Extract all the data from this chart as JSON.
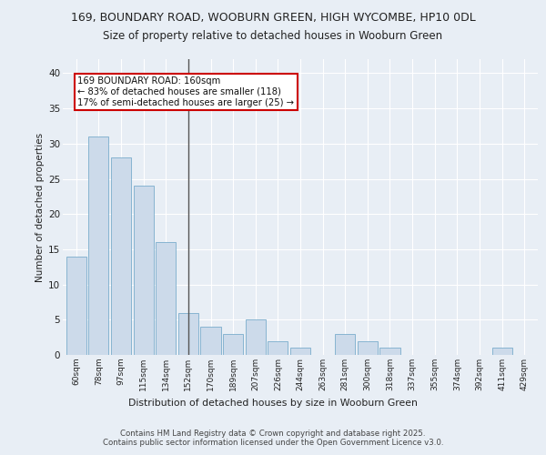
{
  "title1": "169, BOUNDARY ROAD, WOOBURN GREEN, HIGH WYCOMBE, HP10 0DL",
  "title2": "Size of property relative to detached houses in Wooburn Green",
  "xlabel": "Distribution of detached houses by size in Wooburn Green",
  "ylabel": "Number of detached properties",
  "categories": [
    "60sqm",
    "78sqm",
    "97sqm",
    "115sqm",
    "134sqm",
    "152sqm",
    "170sqm",
    "189sqm",
    "207sqm",
    "226sqm",
    "244sqm",
    "263sqm",
    "281sqm",
    "300sqm",
    "318sqm",
    "337sqm",
    "355sqm",
    "374sqm",
    "392sqm",
    "411sqm",
    "429sqm"
  ],
  "values": [
    14,
    31,
    28,
    24,
    16,
    6,
    4,
    3,
    5,
    2,
    1,
    0,
    3,
    2,
    1,
    0,
    0,
    0,
    0,
    1,
    0
  ],
  "bar_color": "#ccdaea",
  "bar_edge_color": "#7aadcc",
  "vline_index": 5,
  "annotation_text": "169 BOUNDARY ROAD: 160sqm\n← 83% of detached houses are smaller (118)\n17% of semi-detached houses are larger (25) →",
  "annotation_box_color": "#ffffff",
  "annotation_box_edge": "#cc0000",
  "ylim": [
    0,
    42
  ],
  "yticks": [
    0,
    5,
    10,
    15,
    20,
    25,
    30,
    35,
    40
  ],
  "bg_color": "#e8eef5",
  "footer1": "Contains HM Land Registry data © Crown copyright and database right 2025.",
  "footer2": "Contains public sector information licensed under the Open Government Licence v3.0."
}
